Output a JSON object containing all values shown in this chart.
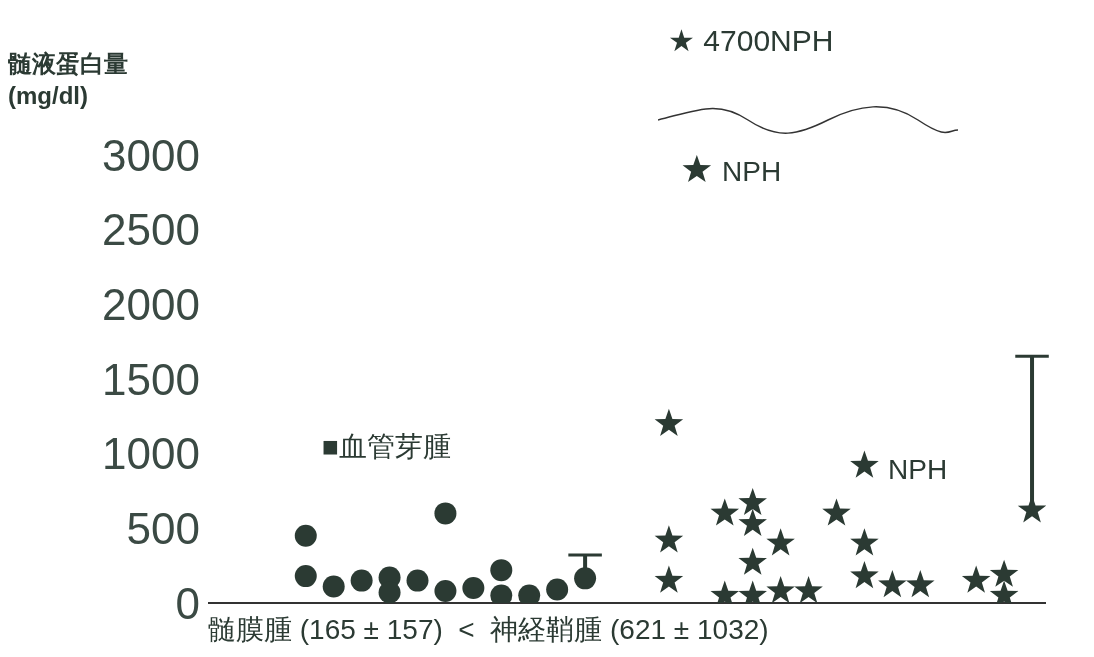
{
  "chart_data": {
    "type": "scatter",
    "ylabel": "髄液蛋白量 (mg/dl)",
    "xlabel": "髄膜腫 (165 ± 157)  <  神経鞘腫 (621 ± 1032)",
    "categories": [
      null,
      null,
      null,
      null,
      null,
      null,
      null,
      null,
      null,
      null,
      null,
      null,
      null,
      null,
      null,
      null,
      null,
      null,
      null,
      null,
      null,
      null,
      null,
      null,
      null,
      null,
      null,
      null,
      null,
      null
    ],
    "ylim": [
      0,
      3000
    ],
    "yticks": [
      0,
      500,
      1000,
      1500,
      2000,
      2500,
      3000
    ],
    "series": [
      {
        "marker": "circle",
        "color": "#2b3a33",
        "values": [
          null,
          null,
          null,
          450,
          110,
          150,
          170,
          150,
          80,
          100,
          220,
          50,
          90,
          null,
          null,
          null,
          null,
          null,
          null,
          null,
          null,
          null,
          null,
          null,
          null,
          null,
          null,
          null,
          null,
          null
        ]
      },
      {
        "marker": "circle",
        "color": "#2b3a33",
        "values": [
          null,
          null,
          null,
          180,
          null,
          null,
          70,
          null,
          600,
          null,
          50,
          null,
          null,
          null,
          null,
          null,
          null,
          null,
          null,
          null,
          null,
          null,
          null,
          null,
          null,
          null,
          null,
          null,
          null,
          null
        ]
      },
      {
        "marker": "circle",
        "color": "#2b3a33",
        "values": [
          null,
          null,
          null,
          null,
          null,
          null,
          null,
          null,
          null,
          null,
          null,
          null,
          null,
          165,
          null,
          null,
          null,
          null,
          null,
          null,
          null,
          null,
          null,
          null,
          null,
          null,
          null,
          null,
          null,
          null
        ],
        "errors": [
          null,
          null,
          null,
          null,
          null,
          null,
          null,
          null,
          null,
          null,
          null,
          null,
          null,
          [
            165,
            322
          ],
          null,
          null,
          null,
          null,
          null,
          null,
          null,
          null,
          null,
          null,
          null,
          null,
          null,
          null,
          null,
          null
        ]
      },
      {
        "marker": "star",
        "color": "#2b3a33",
        "values": [
          null,
          null,
          null,
          null,
          null,
          null,
          null,
          null,
          null,
          null,
          null,
          null,
          null,
          null,
          null,
          null,
          1200,
          2900,
          600,
          670,
          400,
          80,
          600,
          920,
          120,
          120,
          null,
          150,
          190,
          null
        ]
      },
      {
        "marker": "star",
        "color": "#2b3a33",
        "values": [
          null,
          null,
          null,
          null,
          null,
          null,
          null,
          null,
          null,
          null,
          null,
          null,
          null,
          null,
          null,
          null,
          420,
          null,
          50,
          530,
          80,
          null,
          null,
          400,
          null,
          null,
          null,
          null,
          50,
          null
        ]
      },
      {
        "marker": "star",
        "color": "#2b3a33",
        "values": [
          null,
          null,
          null,
          null,
          null,
          null,
          null,
          null,
          null,
          null,
          null,
          null,
          null,
          null,
          null,
          null,
          150,
          null,
          null,
          270,
          null,
          null,
          null,
          180,
          null,
          null,
          null,
          null,
          null,
          null
        ]
      },
      {
        "marker": "star",
        "color": "#2b3a33",
        "values": [
          null,
          null,
          null,
          null,
          null,
          null,
          null,
          null,
          null,
          null,
          null,
          null,
          null,
          null,
          null,
          null,
          null,
          null,
          null,
          50,
          null,
          null,
          null,
          null,
          null,
          null,
          null,
          null,
          null,
          null
        ]
      },
      {
        "marker": "star",
        "color": "#2b3a33",
        "values": [
          null,
          null,
          null,
          null,
          null,
          null,
          null,
          null,
          null,
          null,
          null,
          null,
          null,
          null,
          null,
          null,
          null,
          null,
          null,
          null,
          null,
          null,
          null,
          null,
          null,
          null,
          null,
          null,
          null,
          621
        ],
        "errors": [
          null,
          null,
          null,
          null,
          null,
          null,
          null,
          null,
          null,
          null,
          null,
          null,
          null,
          null,
          null,
          null,
          null,
          null,
          null,
          null,
          null,
          null,
          null,
          null,
          null,
          null,
          null,
          null,
          null,
          [
            621,
            1653
          ]
        ]
      }
    ],
    "annotations": [
      "★ 4700NPH",
      "NPH",
      "NPH",
      "■血管芽腫"
    ]
  }
}
